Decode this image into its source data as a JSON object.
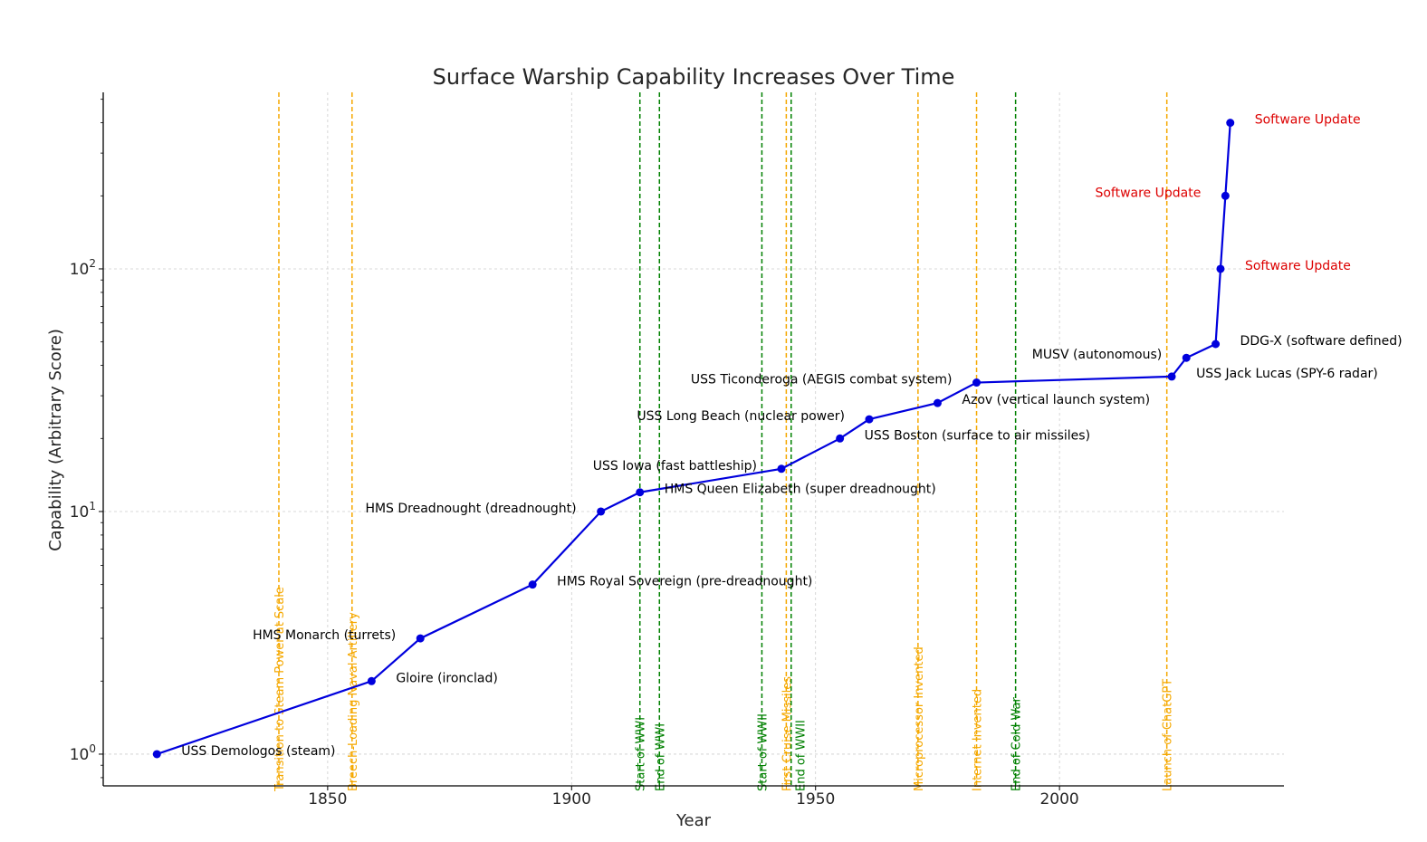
{
  "chart_data": {
    "type": "line",
    "title": "Surface Warship Capability Increases Over Time",
    "xlabel": "Year",
    "ylabel": "Capability (Arbitrary Score)",
    "yscale": "log",
    "xlim": [
      1804,
      2046
    ],
    "ylim": [
      0.74,
      534
    ],
    "grid": true,
    "x_ticks": [
      {
        "value": 1850,
        "label": "1850"
      },
      {
        "value": 1900,
        "label": "1900"
      },
      {
        "value": 1950,
        "label": "1950"
      },
      {
        "value": 2000,
        "label": "2000"
      }
    ],
    "y_ticks": [
      {
        "value": 1,
        "base": "10",
        "exp": "0"
      },
      {
        "value": 10,
        "base": "10",
        "exp": "1"
      },
      {
        "value": 100,
        "base": "10",
        "exp": "2"
      }
    ],
    "series": [
      {
        "name": "Capability",
        "color": "#0000dd",
        "points": [
          {
            "x": 1815,
            "y": 1,
            "label": "USS Demologos (steam)",
            "label_pos": "right",
            "label_color": "#000000"
          },
          {
            "x": 1859,
            "y": 2,
            "label": "Gloire (ironclad)",
            "label_pos": "right",
            "label_color": "#000000"
          },
          {
            "x": 1869,
            "y": 3,
            "label": "HMS Monarch (turrets)",
            "label_pos": "left",
            "label_color": "#000000"
          },
          {
            "x": 1892,
            "y": 5,
            "label": "HMS Royal Sovereign (pre-dreadnought)",
            "label_pos": "right",
            "label_color": "#000000"
          },
          {
            "x": 1906,
            "y": 10,
            "label": "HMS Dreadnought (dreadnought)",
            "label_pos": "left",
            "label_color": "#000000"
          },
          {
            "x": 1914,
            "y": 12,
            "label": "HMS Queen Elizabeth (super dreadnought)",
            "label_pos": "right",
            "label_color": "#000000"
          },
          {
            "x": 1943,
            "y": 15,
            "label": "USS Iowa (fast battleship)",
            "label_pos": "left",
            "label_color": "#000000"
          },
          {
            "x": 1955,
            "y": 20,
            "label": "USS Boston (surface to air missiles)",
            "label_pos": "right",
            "label_color": "#000000"
          },
          {
            "x": 1961,
            "y": 24,
            "label": "USS Long Beach (nuclear power)",
            "label_pos": "left",
            "label_color": "#000000"
          },
          {
            "x": 1975,
            "y": 28,
            "label": "Azov (vertical launch system)",
            "label_pos": "right",
            "label_color": "#000000"
          },
          {
            "x": 1983,
            "y": 34,
            "label": "USS Ticonderoga (AEGIS combat system)",
            "label_pos": "left",
            "label_color": "#000000"
          },
          {
            "x": 2023,
            "y": 36,
            "label": "USS Jack Lucas (SPY-6 radar)",
            "label_pos": "right",
            "label_color": "#000000"
          },
          {
            "x": 2026,
            "y": 43,
            "label": "MUSV (autonomous)",
            "label_pos": "left",
            "label_color": "#000000"
          },
          {
            "x": 2032,
            "y": 49,
            "label": "DDG-X (software defined)",
            "label_pos": "right",
            "label_color": "#000000"
          },
          {
            "x": 2033,
            "y": 100,
            "label": "Software Update",
            "label_pos": "right",
            "label_color": "#dd0000"
          },
          {
            "x": 2034,
            "y": 200,
            "label": "Software Update",
            "label_pos": "left",
            "label_color": "#dd0000"
          },
          {
            "x": 2035,
            "y": 400,
            "label": "Software Update",
            "label_pos": "right",
            "label_color": "#dd0000"
          }
        ]
      }
    ],
    "annotations": [
      {
        "x": 1840,
        "label": "Transition to Steam Power at Scale",
        "color": "#f5a800",
        "style": "dashed"
      },
      {
        "x": 1855,
        "label": "Breech-Loading Naval Artillery",
        "color": "#f5a800",
        "style": "dashed"
      },
      {
        "x": 1914,
        "label": "Start of WWI",
        "color": "#008000",
        "style": "dashed"
      },
      {
        "x": 1918,
        "label": "End of WWI",
        "color": "#008000",
        "style": "dashed"
      },
      {
        "x": 1939,
        "label": "Start of WWII",
        "color": "#008000",
        "style": "dashed"
      },
      {
        "x": 1944,
        "label": "First Cruise Missiles",
        "color": "#f5a800",
        "style": "dashed"
      },
      {
        "x": 1945,
        "label": "End of WWII",
        "color": "#008000",
        "style": "dashed"
      },
      {
        "x": 1971,
        "label": "Microprocessor Invented",
        "color": "#f5a800",
        "style": "dashed"
      },
      {
        "x": 1983,
        "label": "Internet Invented",
        "color": "#f5a800",
        "style": "dashed"
      },
      {
        "x": 1991,
        "label": "End of Cold War",
        "color": "#008000",
        "style": "dashed"
      },
      {
        "x": 2022,
        "label": "Launch of ChatGPT",
        "color": "#f5a800",
        "style": "dashed"
      }
    ]
  }
}
